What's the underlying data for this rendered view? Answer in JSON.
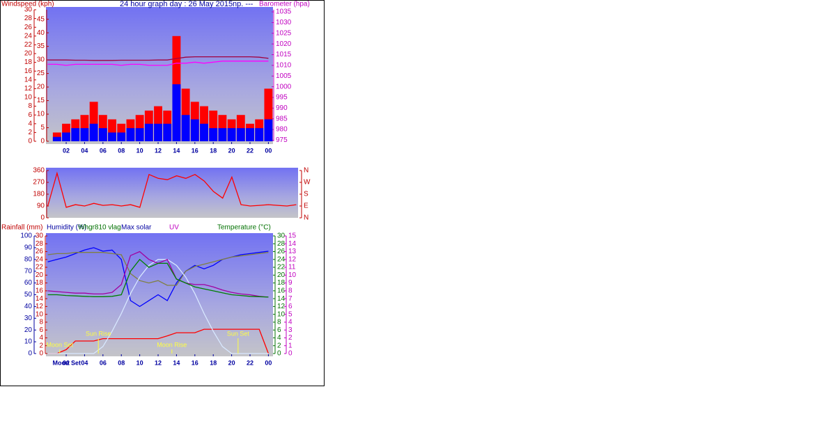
{
  "chart_data": [
    {
      "type": "wind",
      "title": "24 hour graph day : 26 May 2015np. ---",
      "ylabel": "Windspeed (kph)",
      "y2label": "Barometer (hpa)",
      "x": [
        0,
        1,
        2,
        3,
        4,
        5,
        6,
        7,
        8,
        9,
        10,
        11,
        12,
        13,
        14,
        15,
        16,
        17,
        18,
        19,
        20,
        21,
        22,
        23,
        24
      ],
      "xlim": [
        -0.2,
        24.5
      ],
      "xticks": [
        {
          "value": 2,
          "label": "02"
        },
        {
          "value": 4,
          "label": "04"
        },
        {
          "value": 6,
          "label": "06"
        },
        {
          "value": 8,
          "label": "08"
        },
        10,
        12,
        14,
        16,
        18,
        20,
        22,
        {
          "value": 24,
          "label": "00"
        }
      ],
      "ylim": [
        0,
        30
      ],
      "yticks": [
        0,
        2,
        4,
        6,
        8,
        10,
        12,
        14,
        16,
        18,
        20,
        22,
        24,
        26,
        28,
        30
      ],
      "y3lim": [
        0,
        48.5
      ],
      "y3ticks": [
        0,
        5,
        10,
        15,
        20,
        25,
        30,
        35,
        40,
        45
      ],
      "y2lim": [
        974.5,
        1036
      ],
      "y2ticks": [
        975,
        980,
        985,
        990,
        995,
        1000,
        1005,
        1010,
        1015,
        1020,
        1025,
        1030,
        1035
      ],
      "series": [
        {
          "color": "#ff0000",
          "style": "bar",
          "axis": "y",
          "values": [
            0,
            2,
            4,
            5,
            6,
            9,
            6,
            5,
            4,
            5,
            6,
            7,
            8,
            7,
            24,
            12,
            9,
            8,
            7,
            6,
            5,
            6,
            4,
            5,
            12
          ]
        },
        {
          "color": "#0000ff",
          "style": "bar",
          "axis": "y",
          "values": [
            0,
            1,
            2,
            3,
            3,
            4,
            3,
            2,
            2,
            3,
            3,
            4,
            4,
            4,
            13,
            6,
            5,
            4,
            3,
            3,
            3,
            3,
            3,
            3,
            5
          ]
        },
        {
          "color": "#a00040",
          "style": "line",
          "axis": "y2",
          "values": [
            1012.5,
            1012.5,
            1012.5,
            1012.4,
            1012.4,
            1012.3,
            1012.3,
            1012.3,
            1012.4,
            1012.4,
            1012.4,
            1012.4,
            1012.5,
            1012.5,
            1013.2,
            1013.8,
            1014,
            1014,
            1014,
            1014,
            1014,
            1014,
            1014,
            1013.8,
            1013.3
          ]
        },
        {
          "color": "#ff00ff",
          "style": "line",
          "axis": "y2",
          "values": [
            1010.5,
            1010.5,
            1010,
            1010.5,
            1010.5,
            1010.5,
            1010.5,
            1010.5,
            1010,
            1010.5,
            1010.5,
            1010,
            1010,
            1010,
            1011,
            1011,
            1011.5,
            1011,
            1011.5,
            1012,
            1012,
            1012,
            1012,
            1012,
            1012
          ]
        }
      ]
    },
    {
      "type": "direction",
      "x": [
        0,
        1,
        2,
        3,
        4,
        5,
        6,
        7,
        8,
        9,
        10,
        11,
        12,
        13,
        14,
        15,
        16,
        17,
        18,
        19,
        20,
        21,
        22,
        23,
        24,
        25,
        26,
        27
      ],
      "xlim": [
        -0.2,
        27.2
      ],
      "ylim": [
        0,
        360
      ],
      "yticks": [
        0,
        90,
        180,
        270,
        360
      ],
      "y2lim": [
        0,
        360
      ],
      "y2ticks": [
        {
          "value": 0,
          "label": "N"
        },
        {
          "value": 90,
          "label": "E"
        },
        {
          "value": 180,
          "label": "S"
        },
        {
          "value": 270,
          "label": "W"
        },
        {
          "value": 360,
          "label": "N"
        }
      ],
      "series": [
        {
          "color": "#ff0000",
          "style": "line",
          "axis": "y",
          "values": [
            90,
            340,
            80,
            100,
            90,
            110,
            95,
            100,
            90,
            100,
            80,
            330,
            300,
            290,
            320,
            300,
            330,
            280,
            200,
            150,
            310,
            100,
            90,
            95,
            100,
            95,
            90,
            100
          ]
        }
      ]
    },
    {
      "type": "weather",
      "x": [
        0,
        1,
        2,
        3,
        4,
        5,
        6,
        7,
        8,
        9,
        10,
        11,
        12,
        13,
        14,
        15,
        16,
        17,
        18,
        19,
        20,
        21,
        22,
        23,
        24
      ],
      "xlim": [
        -0.2,
        24.5
      ],
      "xticks": [
        {
          "value": 2,
          "label": "02"
        },
        {
          "value": 4,
          "label": "04"
        },
        {
          "value": 6,
          "label": "06"
        },
        {
          "value": 8,
          "label": "08"
        },
        10,
        12,
        14,
        16,
        18,
        20,
        22,
        {
          "value": 24,
          "label": "00"
        }
      ],
      "ylim": [
        0,
        30
      ],
      "yticks": [
        0,
        2,
        4,
        6,
        8,
        10,
        12,
        14,
        16,
        18,
        20,
        22,
        24,
        26,
        28,
        30
      ],
      "y3lim": [
        0,
        100
      ],
      "y3ticks": [
        0,
        10,
        20,
        30,
        40,
        50,
        60,
        70,
        80,
        90,
        100
      ],
      "y2lim": [
        0,
        30
      ],
      "y2ticks": [
        0,
        2,
        4,
        6,
        8,
        10,
        12,
        14,
        16,
        18,
        20,
        22,
        24,
        26,
        28,
        30
      ],
      "y4lim": [
        0,
        15
      ],
      "y4ticks": [
        0,
        1,
        2,
        3,
        4,
        5,
        6,
        7,
        8,
        9,
        10,
        11,
        12,
        13,
        14,
        15
      ],
      "series": [
        {
          "name": "Rainfall (mm)",
          "color": "#ff0000",
          "style": "line",
          "axis": "y",
          "values": [
            0,
            0,
            1,
            3.2,
            3.2,
            3.2,
            3.8,
            3.8,
            3.8,
            3.8,
            3.8,
            3.8,
            3.8,
            4.5,
            5.3,
            5.3,
            5.3,
            6.2,
            6.2,
            6.2,
            6.2,
            6.2,
            6.2,
            6.2,
            0
          ]
        },
        {
          "name": "Humidity (%)",
          "color": "#0000ff",
          "style": "line",
          "axis": "y3",
          "values": [
            78,
            80,
            82,
            85,
            88,
            90,
            87,
            88,
            80,
            45,
            40,
            45,
            50,
            45,
            60,
            70,
            75,
            72,
            75,
            80,
            82,
            84,
            85,
            86,
            87
          ]
        },
        {
          "name": "Whgr810 vlag",
          "color": "#808040",
          "style": "line",
          "axis": "y3",
          "values": [
            84,
            85,
            85,
            86,
            86,
            86,
            86,
            85,
            84,
            68,
            62,
            60,
            62,
            58,
            58,
            70,
            74,
            76,
            78,
            80,
            82,
            83,
            84,
            85,
            86
          ]
        },
        {
          "name": "Max solar",
          "color": "#d8e8ff",
          "style": "line",
          "axis": "y3",
          "values": [
            0,
            0,
            0,
            0,
            0,
            0,
            6,
            19,
            34,
            51,
            65,
            75,
            80,
            80,
            75,
            65,
            51,
            34,
            19,
            6,
            0,
            0,
            0,
            0,
            0
          ]
        },
        {
          "name": "UV",
          "color": "#a000a0",
          "style": "line",
          "axis": "y4",
          "values": [
            8,
            7.9,
            7.8,
            7.7,
            7.7,
            7.6,
            7.6,
            7.8,
            8.8,
            12.5,
            13,
            12,
            11.5,
            12,
            9.5,
            9,
            8.8,
            8.8,
            8.5,
            8.1,
            7.8,
            7.6,
            7.5,
            7.3,
            7.2
          ]
        },
        {
          "name": "Temperature (°C)",
          "color": "#008000",
          "style": "line",
          "axis": "y2",
          "values": [
            15,
            15,
            14.8,
            14.7,
            14.6,
            14.5,
            14.5,
            14.6,
            15,
            21,
            24,
            22,
            23,
            23,
            19,
            18,
            17,
            16.5,
            16,
            15.5,
            15,
            14.8,
            14.6,
            14.5,
            14.4
          ]
        }
      ],
      "annotations": [
        {
          "text": "Moon Set",
          "x": 1.3
        },
        {
          "text": "Sun Rise",
          "x": 5.5
        },
        {
          "text": "Moon Rise",
          "x": 13.5
        },
        {
          "text": "Sun Set",
          "x": 20.7
        }
      ],
      "bottom_note": {
        "text": "Moon Set",
        "x": 1.3
      }
    }
  ]
}
